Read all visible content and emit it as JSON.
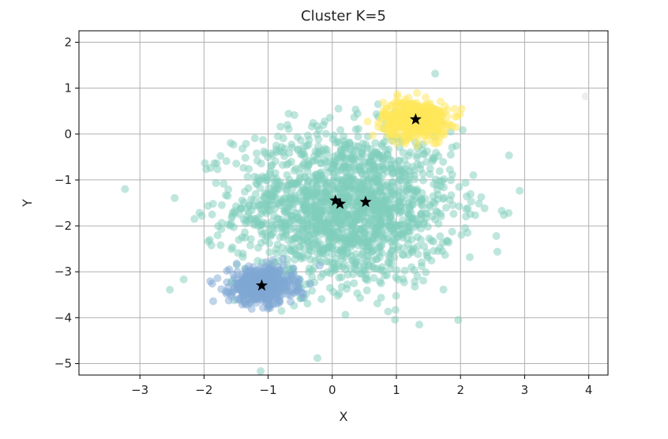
{
  "chart_data": {
    "type": "scatter",
    "title": "Cluster K=5",
    "xlabel": "X",
    "ylabel": "Y",
    "xlim": [
      -3.95,
      4.3
    ],
    "ylim": [
      -5.25,
      2.25
    ],
    "xticks": [
      -3,
      -2,
      -1,
      0,
      1,
      2,
      3,
      4
    ],
    "yticks": [
      2,
      1,
      0,
      -1,
      -2,
      -3,
      -4,
      -5
    ],
    "xtick_labels": [
      "−3",
      "−2",
      "−1",
      "0",
      "1",
      "2",
      "3",
      "4"
    ],
    "ytick_labels": [
      "2",
      "1",
      "0",
      "−1",
      "−2",
      "−3",
      "−4",
      "−5"
    ],
    "grid": true,
    "clusters": [
      {
        "center": [
          0.2,
          -1.6
        ],
        "spread": [
          0.85,
          0.85
        ],
        "count": 1700,
        "color": "#7fcdbb"
      },
      {
        "center": [
          1.3,
          0.32
        ],
        "spread": [
          0.25,
          0.2
        ],
        "count": 500,
        "color": "#ffe85a"
      },
      {
        "center": [
          -1.1,
          -3.3
        ],
        "spread": [
          0.25,
          0.2
        ],
        "count": 500,
        "color": "#7fa8d4"
      },
      {
        "center": [
          3.95,
          0.82
        ],
        "spread": [
          0,
          0
        ],
        "count": 1,
        "color": "#dddddd"
      }
    ],
    "centroids": [
      [
        1.3,
        0.32
      ],
      [
        -1.1,
        -3.3
      ],
      [
        0.05,
        -1.45
      ],
      [
        0.12,
        -1.52
      ],
      [
        0.52,
        -1.48
      ]
    ]
  }
}
